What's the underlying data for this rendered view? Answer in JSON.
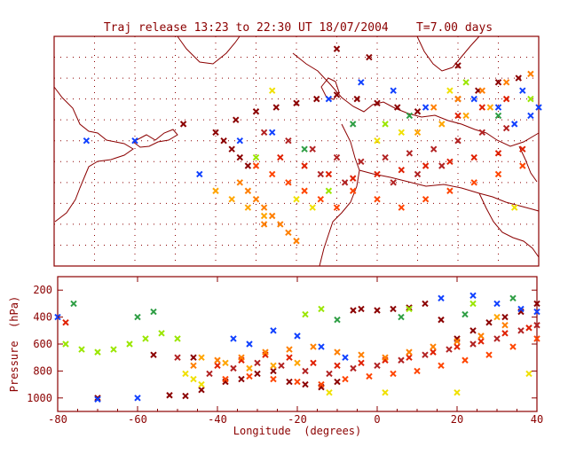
{
  "title": "Traj release 13:23 to 22:30 UT 18/07/2004    T=7.00 days",
  "colors": {
    "frame": "#8b0000",
    "grid": "#8b0000",
    "coast": "#8b0000",
    "palette": [
      "#8b0000",
      "#b22222",
      "#e02000",
      "#ff4500",
      "#ff7f00",
      "#ffa500",
      "#f0e000",
      "#9ae600",
      "#2e9e44",
      "#1040ff"
    ]
  },
  "chart_data": [
    {
      "type": "scatter",
      "panel": "map",
      "xlim": [
        -80,
        40
      ],
      "ylim": [
        20,
        75
      ],
      "grid": true,
      "marker": "x",
      "series": [
        {
          "color": "#8b0000",
          "points": [
            [
              -35,
              55
            ],
            [
              -30,
              57
            ],
            [
              -25,
              58
            ],
            [
              -20,
              59
            ],
            [
              -15,
              60
            ],
            [
              -10,
              61
            ],
            [
              -5,
              60
            ],
            [
              0,
              59
            ],
            [
              5,
              58
            ],
            [
              10,
              57
            ],
            [
              -40,
              52
            ],
            [
              -38,
              50
            ],
            [
              -36,
              48
            ],
            [
              -34,
              46
            ],
            [
              -32,
              44
            ],
            [
              20,
              60
            ],
            [
              25,
              62
            ],
            [
              30,
              64
            ],
            [
              35,
              65
            ],
            [
              -48,
              54
            ],
            [
              -2,
              70
            ],
            [
              -10,
              72
            ],
            [
              20,
              68
            ]
          ]
        },
        {
          "color": "#b22222",
          "points": [
            [
              -28,
              52
            ],
            [
              -22,
              50
            ],
            [
              -16,
              48
            ],
            [
              -10,
              46
            ],
            [
              -4,
              45
            ],
            [
              2,
              46
            ],
            [
              8,
              47
            ],
            [
              14,
              48
            ],
            [
              20,
              50
            ],
            [
              26,
              52
            ],
            [
              32,
              53
            ],
            [
              -14,
              42
            ],
            [
              -8,
              40
            ],
            [
              4,
              40
            ],
            [
              10,
              42
            ],
            [
              16,
              44
            ]
          ]
        },
        {
          "color": "#e02000",
          "points": [
            [
              -24,
              46
            ],
            [
              -18,
              44
            ],
            [
              -12,
              42
            ],
            [
              -6,
              41
            ],
            [
              0,
              42
            ],
            [
              6,
              43
            ],
            [
              12,
              44
            ],
            [
              18,
              45
            ],
            [
              24,
              46
            ],
            [
              30,
              47
            ],
            [
              36,
              48
            ],
            [
              20,
              56
            ],
            [
              26,
              58
            ],
            [
              32,
              60
            ]
          ]
        },
        {
          "color": "#ff4500",
          "points": [
            [
              -30,
              44
            ],
            [
              -26,
              42
            ],
            [
              -22,
              40
            ],
            [
              -18,
              38
            ],
            [
              -14,
              36
            ],
            [
              -10,
              34
            ],
            [
              -6,
              38
            ],
            [
              0,
              36
            ],
            [
              6,
              34
            ],
            [
              12,
              36
            ],
            [
              18,
              38
            ],
            [
              24,
              40
            ],
            [
              30,
              42
            ],
            [
              36,
              44
            ]
          ]
        },
        {
          "color": "#ff7f00",
          "points": [
            [
              -34,
              40
            ],
            [
              -32,
              38
            ],
            [
              -30,
              36
            ],
            [
              -28,
              34
            ],
            [
              -26,
              32
            ],
            [
              -24,
              30
            ],
            [
              -22,
              28
            ],
            [
              -20,
              26
            ],
            [
              -28,
              30
            ],
            [
              14,
              58
            ],
            [
              20,
              60
            ],
            [
              26,
              62
            ],
            [
              32,
              64
            ],
            [
              38,
              66
            ]
          ]
        },
        {
          "color": "#ffa500",
          "points": [
            [
              -40,
              38
            ],
            [
              -36,
              36
            ],
            [
              -32,
              34
            ],
            [
              -28,
              32
            ],
            [
              10,
              52
            ],
            [
              16,
              54
            ],
            [
              22,
              56
            ],
            [
              28,
              58
            ]
          ]
        },
        {
          "color": "#f0e000",
          "points": [
            [
              -20,
              36
            ],
            [
              -16,
              34
            ],
            [
              0,
              50
            ],
            [
              6,
              52
            ],
            [
              18,
              62
            ],
            [
              34,
              34
            ],
            [
              -26,
              62
            ]
          ]
        },
        {
          "color": "#9ae600",
          "points": [
            [
              -30,
              46
            ],
            [
              -12,
              38
            ],
            [
              2,
              54
            ],
            [
              22,
              64
            ],
            [
              38,
              60
            ]
          ]
        },
        {
          "color": "#2e9e44",
          "points": [
            [
              -18,
              48
            ],
            [
              -6,
              54
            ],
            [
              8,
              56
            ],
            [
              30,
              56
            ]
          ]
        },
        {
          "color": "#1040ff",
          "points": [
            [
              -44,
              42
            ],
            [
              -60,
              50
            ],
            [
              -72,
              50
            ],
            [
              -34,
              50
            ],
            [
              -26,
              52
            ],
            [
              -12,
              60
            ],
            [
              -4,
              64
            ],
            [
              4,
              62
            ],
            [
              12,
              58
            ],
            [
              24,
              60
            ],
            [
              30,
              58
            ],
            [
              34,
              54
            ],
            [
              38,
              56
            ],
            [
              40,
              58
            ],
            [
              36,
              62
            ]
          ]
        }
      ]
    },
    {
      "type": "scatter",
      "panel": "profile",
      "xlabel": "Longitude  (degrees)",
      "ylabel": "Pressure  (hPa)",
      "xlim": [
        -80,
        40
      ],
      "ylim": [
        1100,
        100
      ],
      "yticks": [
        200,
        400,
        600,
        800,
        1000
      ],
      "xticks": [
        -80,
        -60,
        -40,
        -20,
        0,
        20,
        40
      ],
      "marker": "x",
      "series": [
        {
          "color": "#8b0000",
          "points": [
            [
              -52,
              980
            ],
            [
              -48,
              985
            ],
            [
              -44,
              940
            ],
            [
              -38,
              880
            ],
            [
              -34,
              860
            ],
            [
              -30,
              820
            ],
            [
              -26,
              800
            ],
            [
              -22,
              880
            ],
            [
              -18,
              900
            ],
            [
              -14,
              920
            ],
            [
              -10,
              880
            ],
            [
              -6,
              350
            ],
            [
              -4,
              340
            ],
            [
              0,
              350
            ],
            [
              4,
              340
            ],
            [
              8,
              330
            ],
            [
              12,
              300
            ],
            [
              16,
              420
            ],
            [
              20,
              560
            ],
            [
              24,
              500
            ],
            [
              28,
              440
            ],
            [
              32,
              400
            ],
            [
              36,
              360
            ],
            [
              40,
              300
            ],
            [
              -56,
              680
            ],
            [
              -46,
              700
            ],
            [
              -70,
              1000
            ]
          ]
        },
        {
          "color": "#b22222",
          "points": [
            [
              -42,
              820
            ],
            [
              -36,
              780
            ],
            [
              -30,
              740
            ],
            [
              -24,
              760
            ],
            [
              -18,
              800
            ],
            [
              -12,
              820
            ],
            [
              -6,
              780
            ],
            [
              0,
              760
            ],
            [
              6,
              720
            ],
            [
              12,
              680
            ],
            [
              18,
              640
            ],
            [
              24,
              600
            ],
            [
              30,
              560
            ],
            [
              36,
              500
            ],
            [
              40,
              460
            ],
            [
              -50,
              700
            ]
          ]
        },
        {
          "color": "#e02000",
          "points": [
            [
              -40,
              760
            ],
            [
              -34,
              720
            ],
            [
              -28,
              680
            ],
            [
              -22,
              700
            ],
            [
              -16,
              740
            ],
            [
              -10,
              760
            ],
            [
              -4,
              740
            ],
            [
              2,
              720
            ],
            [
              8,
              700
            ],
            [
              14,
              660
            ],
            [
              20,
              620
            ],
            [
              26,
              580
            ],
            [
              32,
              520
            ],
            [
              38,
              480
            ],
            [
              -78,
              440
            ]
          ]
        },
        {
          "color": "#ff4500",
          "points": [
            [
              -38,
              860
            ],
            [
              -32,
              840
            ],
            [
              -26,
              860
            ],
            [
              -20,
              880
            ],
            [
              -14,
              900
            ],
            [
              -8,
              860
            ],
            [
              -2,
              840
            ],
            [
              4,
              820
            ],
            [
              10,
              800
            ],
            [
              16,
              760
            ],
            [
              22,
              720
            ],
            [
              28,
              680
            ],
            [
              34,
              620
            ],
            [
              40,
              560
            ]
          ]
        },
        {
          "color": "#ff7f00",
          "points": [
            [
              -46,
              760
            ],
            [
              -40,
              720
            ],
            [
              -34,
              700
            ],
            [
              -28,
              660
            ],
            [
              -22,
              640
            ],
            [
              -16,
              620
            ],
            [
              -10,
              660
            ],
            [
              -4,
              680
            ],
            [
              2,
              700
            ],
            [
              8,
              660
            ],
            [
              14,
              620
            ],
            [
              20,
              580
            ],
            [
              26,
              540
            ],
            [
              32,
              460
            ]
          ]
        },
        {
          "color": "#ffa500",
          "points": [
            [
              -44,
              700
            ],
            [
              -38,
              740
            ],
            [
              -32,
              780
            ],
            [
              -26,
              760
            ],
            [
              -20,
              740
            ],
            [
              30,
              400
            ]
          ]
        },
        {
          "color": "#f0e000",
          "points": [
            [
              -48,
              820
            ],
            [
              -46,
              860
            ],
            [
              -44,
              900
            ],
            [
              -12,
              960
            ],
            [
              2,
              960
            ],
            [
              20,
              960
            ],
            [
              38,
              820
            ]
          ]
        },
        {
          "color": "#9ae600",
          "points": [
            [
              -78,
              600
            ],
            [
              -74,
              640
            ],
            [
              -70,
              660
            ],
            [
              -66,
              640
            ],
            [
              -62,
              600
            ],
            [
              -58,
              560
            ],
            [
              -54,
              520
            ],
            [
              -50,
              560
            ],
            [
              -18,
              380
            ],
            [
              -14,
              340
            ],
            [
              8,
              340
            ],
            [
              24,
              300
            ]
          ]
        },
        {
          "color": "#2e9e44",
          "points": [
            [
              -76,
              300
            ],
            [
              -60,
              400
            ],
            [
              -56,
              360
            ],
            [
              -10,
              420
            ],
            [
              6,
              400
            ],
            [
              22,
              380
            ],
            [
              34,
              260
            ]
          ]
        },
        {
          "color": "#1040ff",
          "points": [
            [
              -80,
              400
            ],
            [
              -70,
              1010
            ],
            [
              -60,
              1000
            ],
            [
              -36,
              560
            ],
            [
              -32,
              600
            ],
            [
              -26,
              500
            ],
            [
              -20,
              540
            ],
            [
              -14,
              620
            ],
            [
              -8,
              700
            ],
            [
              16,
              260
            ],
            [
              24,
              240
            ],
            [
              30,
              300
            ],
            [
              36,
              340
            ],
            [
              40,
              360
            ]
          ]
        }
      ]
    }
  ]
}
